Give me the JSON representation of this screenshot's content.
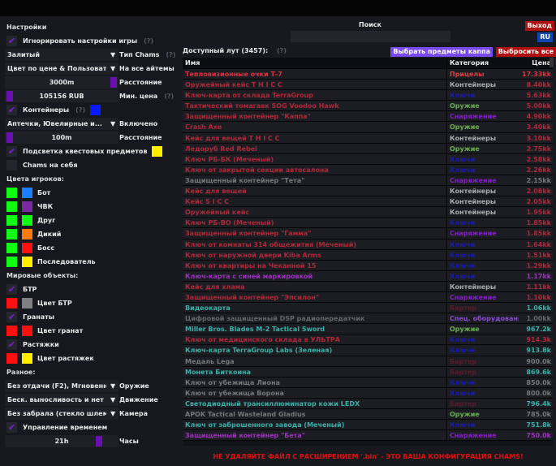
{
  "settings": {
    "title": "Настройки",
    "ignore_game": "Игнорировать настройки игры",
    "help": "(?)",
    "chams_type_value": "Залитый",
    "chams_type_label": "Тип Chams",
    "color_mode_value": "Цвет по цене & Пользователь",
    "color_mode_label": "На все айтемы",
    "distance_value": "3000m",
    "distance_label": "Расстояние",
    "min_price_value": "105156 RUB",
    "min_price_label": "Мин. цена",
    "containers": "Контейнеры",
    "containers_color": "#0a1aff",
    "containers_sel": "Аптечки, Ювелирные и...",
    "containers_sel_label": "Включено",
    "cont_distance_value": "100m",
    "cont_distance_label": "Расстояние",
    "quest_highlight": "Подсветка квестовых предметов",
    "quest_color": "#ffee00",
    "chams_self": "Chams на себя",
    "players_title": "Цвета игроков:",
    "players": [
      {
        "label": "Бот",
        "c1": "#10ff10",
        "c2": "#1a7fff"
      },
      {
        "label": "ЧВК",
        "c1": "#10ff10",
        "c2": "#7a2aa0"
      },
      {
        "label": "Друг",
        "c1": "#10ff10",
        "c2": "#10ff10"
      },
      {
        "label": "Дикий",
        "c1": "#10ff10",
        "c2": "#ff7a00"
      },
      {
        "label": "Босс",
        "c1": "#10ff10",
        "c2": "#ff1010"
      },
      {
        "label": "Последователь",
        "c1": "#10ff10",
        "c2": "#ffee00"
      }
    ],
    "world_title": "Мировые объекты:",
    "btr": "БТР",
    "btr_color_label": "Цвет БТР",
    "btr_c1": "#ff1010",
    "btr_c2": "#808080",
    "grenades": "Гранаты",
    "grenades_color_label": "Цвет гранат",
    "gr_c1": "#ff1010",
    "gr_c2": "#ff1010",
    "tripwires": "Растяжки",
    "tripwires_color_label": "Цвет растяжек",
    "tw_c1": "#ff1010",
    "tw_c2": "#ffee00",
    "misc_title": "Разное:",
    "weapon_value": "Без отдачи (F2), Мгновенное п",
    "weapon_label": "Оружие",
    "movement_value": "Беск. выносливость и нет уста",
    "movement_label": "Движение",
    "camera_value": "Без забрала (стекло шлема)",
    "camera_label": "Камера",
    "time_control": "Управление временем",
    "hours_value": "21h",
    "hours_label": "Часы"
  },
  "header": {
    "search_label": "Поиск",
    "search_value": "",
    "exit": "Выход",
    "lang": "RU"
  },
  "loot": {
    "title": "Доступный лут (3457):",
    "help": "(?)",
    "select_kappa": "Выбрать предметы каппа",
    "drop_all": "Выбросить все",
    "columns": [
      "Имя",
      "Категория",
      "Цена"
    ],
    "rows": [
      [
        "Тепловизионные очки Т-7",
        "Прицелы",
        "17.33kk",
        "#e03040",
        "#e04040"
      ],
      [
        "Оружейный кейс T H I C C",
        "Контейнеры",
        "8.40kk",
        "#b02838",
        "#aaaaaa"
      ],
      [
        "Ключ-карта от склада TerraGroup",
        "Ключи",
        "5.63kk",
        "#b02838",
        "#1a1ab0"
      ],
      [
        "Тактический томагавк SOG Voodoo Hawk",
        "Оружие",
        "5.00kk",
        "#b02838",
        "#6ab050"
      ],
      [
        "Защищенный контейнер \"Каппа\"",
        "Снаряжение",
        "4.90kk",
        "#b02838",
        "#8a1ad0"
      ],
      [
        "Crash Axe",
        "Оружие",
        "3.40kk",
        "#b02838",
        "#6ab050"
      ],
      [
        "Кейс для вещей T H I C C",
        "Контейнеры",
        "3.10kk",
        "#b02838",
        "#aaaaaa"
      ],
      [
        "Ледоруб Red Rebel",
        "Оружие",
        "2.75kk",
        "#b02838",
        "#6ab050"
      ],
      [
        "Ключ РБ-БК (Меченый)",
        "Ключи",
        "2.58kk",
        "#b02838",
        "#1a1ab0"
      ],
      [
        "Ключ от закрытой секции автосалона",
        "Ключи",
        "2.26kk",
        "#b02838",
        "#1a1ab0"
      ],
      [
        "Защищенный контейнер \"Тета\"",
        "Снаряжение",
        "2.15kk",
        "#777777",
        "#8a1ad0"
      ],
      [
        "Кейс для вещей",
        "Контейнеры",
        "2.08kk",
        "#b02838",
        "#aaaaaa"
      ],
      [
        "Кейс S I C C",
        "Контейнеры",
        "2.05kk",
        "#b02838",
        "#aaaaaa"
      ],
      [
        "Оружейный кейс",
        "Контейнеры",
        "1.95kk",
        "#b02838",
        "#aaaaaa"
      ],
      [
        "Ключ РБ-ВО (Меченый)",
        "Ключи",
        "1.85kk",
        "#b02838",
        "#1a1ab0"
      ],
      [
        "Защищенный контейнер \"Гамма\"",
        "Снаряжение",
        "1.85kk",
        "#b02838",
        "#8a1ad0"
      ],
      [
        "Ключ от комнаты 314 общежития (Меченый)",
        "Ключи",
        "1.64kk",
        "#b02838",
        "#1a1ab0"
      ],
      [
        "Ключ от наружной двери Kiba Arms",
        "Ключи",
        "1.51kk",
        "#b02838",
        "#1a1ab0"
      ],
      [
        "Ключ от квартиры на Чеканной 15",
        "Ключи",
        "1.29kk",
        "#b02838",
        "#1a1ab0"
      ],
      [
        "Ключ-карта с синей маркировкой",
        "Ключи",
        "1.17kk",
        "#a030c0",
        "#1a1ab0"
      ],
      [
        "Кейс для хлама",
        "Контейнеры",
        "1.11kk",
        "#b02838",
        "#aaaaaa"
      ],
      [
        "Защищенный контейнер \"Эпсилон\"",
        "Снаряжение",
        "1.10kk",
        "#b02838",
        "#8a1ad0"
      ],
      [
        "Видеокарта",
        "Бартер",
        "1.06kk",
        "#3ab0a8",
        "#5a1a2a"
      ],
      [
        "Цифровой защищенный DSP радиопередатчик",
        "Спец. оборудование",
        "1.00kk",
        "#666666",
        "#8a4ad0"
      ],
      [
        "Miller Bros. Blades M-2 Tactical Sword",
        "Оружие",
        "967.2k",
        "#3ab0a8",
        "#6ab050"
      ],
      [
        "Ключ от медицинского склада в УЛЬТРА",
        "Ключи",
        "914.3k",
        "#b02838",
        "#1a1ab0"
      ],
      [
        "Ключ-карта TerraGroup Labs (Зеленая)",
        "Ключи",
        "913.8k",
        "#3ab0a8",
        "#1a1ab0"
      ],
      [
        "Медаль Lega",
        "Бартер",
        "900.0k",
        "#777777",
        "#5a1a2a"
      ],
      [
        "Монета Биткоина",
        "Бартер",
        "869.6k",
        "#3ab0a8",
        "#5a1a2a"
      ],
      [
        "Ключ от убежища Лиона",
        "Ключи",
        "850.0k",
        "#777777",
        "#1a1ab0"
      ],
      [
        "Ключ от убежища Ворона",
        "Ключи",
        "800.0k",
        "#777777",
        "#1a1ab0"
      ],
      [
        "Светодиодный трансиллюминатор кожи LEDX",
        "Бартер",
        "796.4k",
        "#3ab0a8",
        "#5a1a2a"
      ],
      [
        "APOK Tactical Wasteland Gladius",
        "Оружие",
        "785.0k",
        "#777777",
        "#6ab050"
      ],
      [
        "Ключ от заброшенного завода (Меченый)",
        "Ключи",
        "751.8k",
        "#3ab0a8",
        "#1a1ab0"
      ],
      [
        "Защищенный контейнер \"Бета\"",
        "Снаряжение",
        "750.0k",
        "#a030c0",
        "#8a1ad0"
      ]
    ]
  },
  "warning": "НЕ УДАЛЯЙТЕ ФАЙЛ С РАСШИРЕНИЕМ '.bin' - ЭТО ВАША КОНФИГУРАЦИЯ CHAMS!"
}
